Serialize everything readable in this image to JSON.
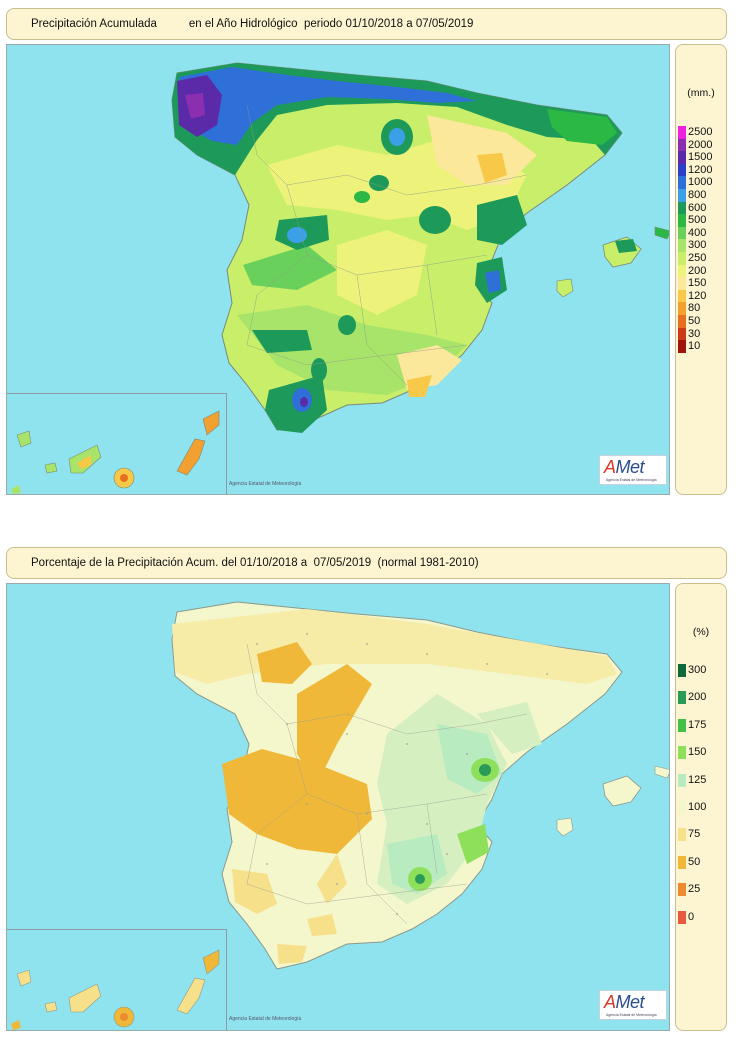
{
  "map1": {
    "title": "Precipitación Acumulada          en el Año Hidrológico  periodo 01/10/2018 a 07/05/2019",
    "legend_unit": "(mm.)",
    "legend": [
      {
        "label": "2500",
        "color": "#f020e0"
      },
      {
        "label": "2000",
        "color": "#8a2fb0"
      },
      {
        "label": "1500",
        "color": "#5a2aa8"
      },
      {
        "label": "1200",
        "color": "#2e3fc8"
      },
      {
        "label": "1000",
        "color": "#2f6fd8"
      },
      {
        "label": "800",
        "color": "#3ca0e8"
      },
      {
        "label": "600",
        "color": "#1d9a5a"
      },
      {
        "label": "500",
        "color": "#2cb845"
      },
      {
        "label": "400",
        "color": "#6ad05c"
      },
      {
        "label": "300",
        "color": "#a8e46a"
      },
      {
        "label": "250",
        "color": "#c8ee6a"
      },
      {
        "label": "200",
        "color": "#ecf27a"
      },
      {
        "label": "150",
        "color": "#fbe89a"
      },
      {
        "label": "120",
        "color": "#f8c848"
      },
      {
        "label": "80",
        "color": "#f2a030"
      },
      {
        "label": "50",
        "color": "#e86e20"
      },
      {
        "label": "30",
        "color": "#cc3a1a"
      },
      {
        "label": "10",
        "color": "#a0140e"
      }
    ],
    "credit": "Agencia Estatal de Meteorología",
    "logo_text": "Met",
    "logo_prefix": "A",
    "logo_sub": "Agencia Estatal de Meteorología"
  },
  "map2": {
    "title": "Porcentaje de la Precipitación Acum. del 01/10/2018 a  07/05/2019  (normal 1981-2010)",
    "legend_unit": "(%)",
    "legend": [
      {
        "label": "300",
        "color": "#0e6a3a"
      },
      {
        "label": "200",
        "color": "#2a9a58"
      },
      {
        "label": "175",
        "color": "#42c048"
      },
      {
        "label": "150",
        "color": "#8ee05a"
      },
      {
        "label": "125",
        "color": "#b8ecc0"
      },
      {
        "label": "100",
        "color": "#f4f6cc"
      },
      {
        "label": "75",
        "color": "#f6e08a"
      },
      {
        "label": "50",
        "color": "#f0b838"
      },
      {
        "label": "25",
        "color": "#ee8a30"
      },
      {
        "label": "0",
        "color": "#e85a40"
      }
    ],
    "credit": "Agencia Estatal de Meteorología",
    "logo_text": "Met",
    "logo_prefix": "A",
    "logo_sub": "Agencia Estatal de Meteorología"
  }
}
